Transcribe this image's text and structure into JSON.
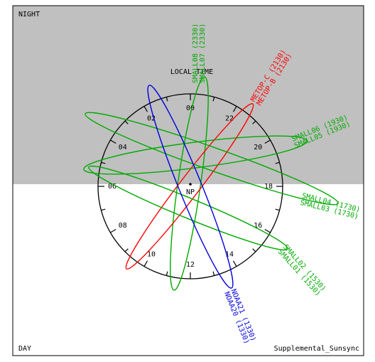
{
  "header": {
    "night": "NIGHT",
    "day": "DAY",
    "footer": "Supplemental_Sunsync",
    "axis_title": "LOCAL TIME",
    "center": "NP"
  },
  "hours": [
    "00",
    "02",
    "04",
    "06",
    "08",
    "10",
    "12",
    "14",
    "16",
    "18",
    "20",
    "22"
  ],
  "orbits": [
    {
      "color": "#00aa00",
      "labels": [
        "SMALL08 (2330)",
        "SMALL07 (2330)"
      ]
    },
    {
      "color": "#ff0000",
      "labels": [
        "METOP-C (2130)",
        "METOP-B (2130)"
      ]
    },
    {
      "color": "#00aa00",
      "labels": [
        "SMALL06 (1930)",
        "SMALL05 (1930)"
      ]
    },
    {
      "color": "#00aa00",
      "labels": [
        "SMALL04 (1730)",
        "SMALL03 (1730)"
      ]
    },
    {
      "color": "#00aa00",
      "labels": [
        "SMALL02 (1530)",
        "SMALL01 (1530)"
      ]
    },
    {
      "color": "#0000dd",
      "labels": [
        "NOAA21 (1330)",
        "NOAA20 (1330)"
      ]
    }
  ]
}
